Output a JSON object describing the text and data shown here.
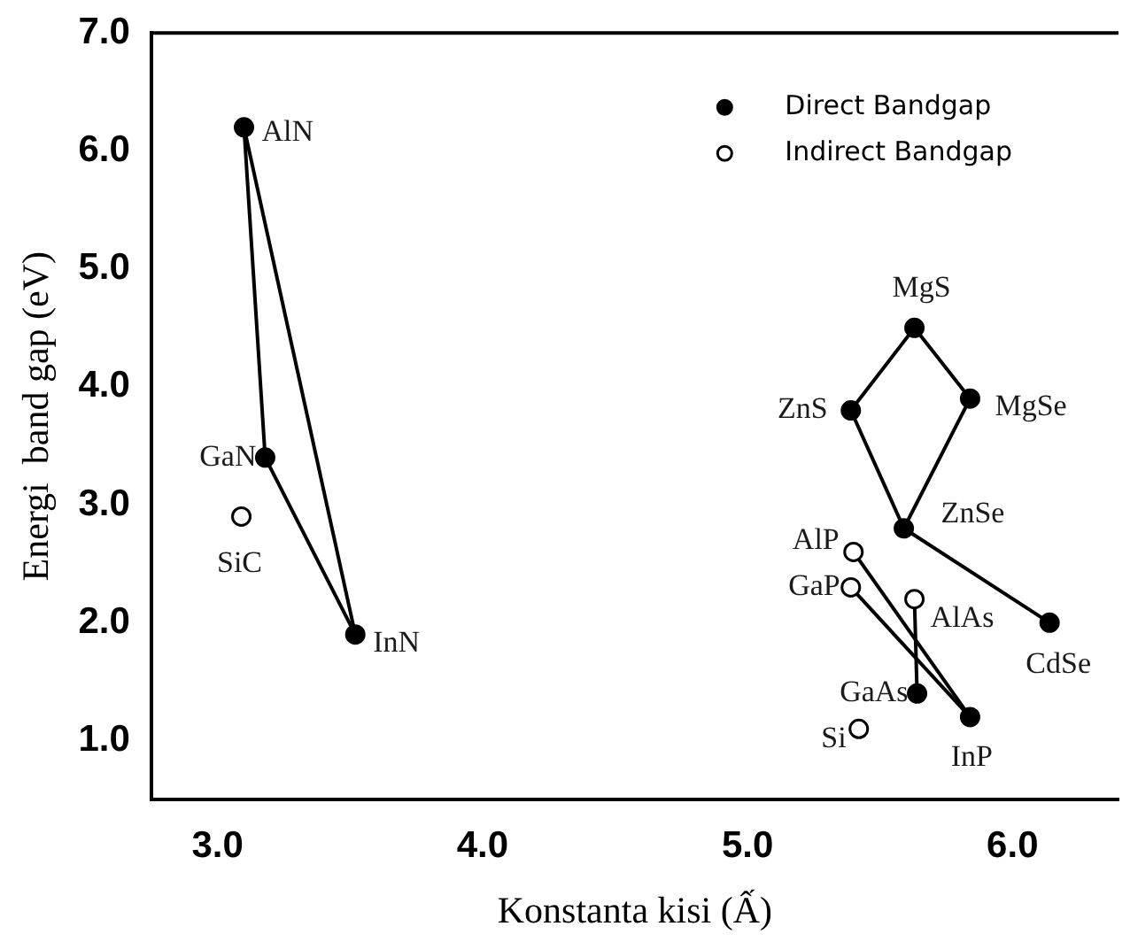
{
  "chart_data": {
    "type": "scatter",
    "xlabel": "Konstanta kisi (Ấ)",
    "ylabel": "Energi  band gap (eV)",
    "xlim": [
      2.75,
      6.4
    ],
    "ylim": [
      0.5,
      7.0
    ],
    "xticks": [
      {
        "value": 3,
        "label": "3.0"
      },
      {
        "value": 4,
        "label": "4.0"
      },
      {
        "value": 5,
        "label": "5.0"
      },
      {
        "value": 6,
        "label": "6.0"
      }
    ],
    "yticks": [
      {
        "value": 1,
        "label": "1.0"
      },
      {
        "value": 2,
        "label": "2.0"
      },
      {
        "value": 3,
        "label": "3.0"
      },
      {
        "value": 4,
        "label": "4.0"
      },
      {
        "value": 5,
        "label": "5.0"
      },
      {
        "value": 6,
        "label": "6.0"
      },
      {
        "value": 7,
        "label": "7.0"
      }
    ],
    "grid": false,
    "legend": "top right",
    "marker": "circle",
    "series": [
      {
        "type": "line",
        "color": "#000000",
        "marker": "none",
        "x": [
          3.1,
          3.18,
          3.52
        ],
        "values": [
          6.2,
          3.4,
          1.9
        ]
      },
      {
        "type": "line",
        "color": "#000000",
        "marker": "none",
        "x": [
          3.1,
          3.52
        ],
        "values": [
          6.2,
          1.9
        ]
      },
      {
        "type": "line",
        "color": "#000000",
        "marker": "none",
        "x": [
          5.39,
          5.63,
          5.84
        ],
        "values": [
          3.8,
          4.5,
          3.9
        ]
      },
      {
        "type": "line",
        "color": "#000000",
        "marker": "none",
        "x": [
          5.39,
          5.59,
          5.84
        ],
        "values": [
          3.8,
          2.8,
          3.9
        ]
      },
      {
        "type": "line",
        "color": "#000000",
        "marker": "none",
        "x": [
          5.59,
          6.14
        ],
        "values": [
          2.8,
          2.0
        ]
      },
      {
        "type": "line",
        "color": "#000000",
        "marker": "none",
        "x": [
          5.4,
          5.84
        ],
        "values": [
          2.6,
          1.2
        ]
      },
      {
        "type": "line",
        "color": "#000000",
        "marker": "none",
        "x": [
          5.39,
          5.84
        ],
        "values": [
          2.3,
          1.2
        ]
      },
      {
        "type": "line",
        "color": "#000000",
        "marker": "none",
        "x": [
          5.63,
          5.64
        ],
        "values": [
          2.2,
          1.4
        ]
      },
      {
        "name": "Direct Bandgap",
        "color": "#000000",
        "x": [
          3.1,
          3.18,
          3.52,
          5.63,
          5.39,
          5.84,
          5.59,
          6.14,
          5.64,
          5.84
        ],
        "values": [
          6.2,
          3.4,
          1.9,
          4.5,
          3.8,
          3.9,
          2.8,
          2.0,
          1.4,
          1.2
        ]
      },
      {
        "name": "Indirect Bandgap",
        "color": "#ffffff",
        "x": [
          3.09,
          5.4,
          5.39,
          5.63,
          5.42
        ],
        "values": [
          2.9,
          2.6,
          2.3,
          2.2,
          1.1
        ]
      }
    ],
    "annotations": [
      {
        "text": "AlN",
        "x": 3.1,
        "y": 6.2
      },
      {
        "text": "GaN",
        "x": 3.18,
        "y": 3.4
      },
      {
        "text": "SiC",
        "x": 3.09,
        "y": 2.9
      },
      {
        "text": "InN",
        "x": 3.52,
        "y": 1.9
      },
      {
        "text": "MgS",
        "x": 5.63,
        "y": 4.5
      },
      {
        "text": "ZnS",
        "x": 5.39,
        "y": 3.8
      },
      {
        "text": "MgSe",
        "x": 5.84,
        "y": 3.9
      },
      {
        "text": "ZnSe",
        "x": 5.59,
        "y": 2.8
      },
      {
        "text": "CdSe",
        "x": 6.14,
        "y": 2.0
      },
      {
        "text": "AlP",
        "x": 5.4,
        "y": 2.6
      },
      {
        "text": "GaP",
        "x": 5.39,
        "y": 2.3
      },
      {
        "text": "AlAs",
        "x": 5.63,
        "y": 2.2
      },
      {
        "text": "GaAs",
        "x": 5.64,
        "y": 1.4
      },
      {
        "text": "InP",
        "x": 5.84,
        "y": 1.2
      },
      {
        "text": "Si",
        "x": 5.42,
        "y": 1.1
      }
    ]
  }
}
